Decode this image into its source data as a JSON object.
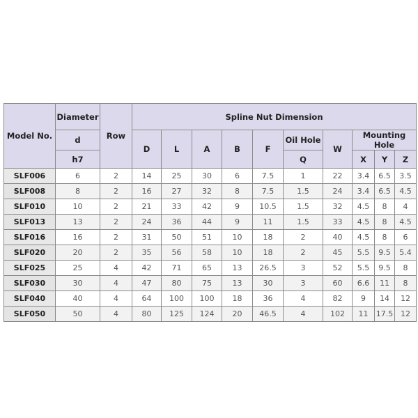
{
  "header": {
    "model": "Model No.",
    "diameter": "Diameter",
    "d": "d",
    "h7": "h7",
    "row": "Row",
    "spline": "Spline Nut Dimension",
    "D": "D",
    "L": "L",
    "A": "A",
    "B": "B",
    "F": "F",
    "oil_hole": "Oil Hole",
    "Q": "Q",
    "W": "W",
    "mounting_hole": "Mounting Hole",
    "X": "X",
    "Y": "Y",
    "Z": "Z"
  },
  "rows": [
    [
      "SLF006",
      "6",
      "2",
      "14",
      "25",
      "30",
      "6",
      "7.5",
      "1",
      "22",
      "3.4",
      "6.5",
      "3.5"
    ],
    [
      "SLF008",
      "8",
      "2",
      "16",
      "27",
      "32",
      "8",
      "7.5",
      "1.5",
      "24",
      "3.4",
      "6.5",
      "4.5"
    ],
    [
      "SLF010",
      "10",
      "2",
      "21",
      "33",
      "42",
      "9",
      "10.5",
      "1.5",
      "32",
      "4.5",
      "8",
      "4"
    ],
    [
      "SLF013",
      "13",
      "2",
      "24",
      "36",
      "44",
      "9",
      "11",
      "1.5",
      "33",
      "4.5",
      "8",
      "4.5"
    ],
    [
      "SLF016",
      "16",
      "2",
      "31",
      "50",
      "51",
      "10",
      "18",
      "2",
      "40",
      "4.5",
      "8",
      "6"
    ],
    [
      "SLF020",
      "20",
      "2",
      "35",
      "56",
      "58",
      "10",
      "18",
      "2",
      "45",
      "5.5",
      "9.5",
      "5.4"
    ],
    [
      "SLF025",
      "25",
      "4",
      "42",
      "71",
      "65",
      "13",
      "26.5",
      "3",
      "52",
      "5.5",
      "9.5",
      "8"
    ],
    [
      "SLF030",
      "30",
      "4",
      "47",
      "80",
      "75",
      "13",
      "30",
      "3",
      "60",
      "6.6",
      "11",
      "8"
    ],
    [
      "SLF040",
      "40",
      "4",
      "64",
      "100",
      "100",
      "18",
      "36",
      "4",
      "82",
      "9",
      "14",
      "12"
    ],
    [
      "SLF050",
      "50",
      "4",
      "80",
      "125",
      "124",
      "20",
      "46.5",
      "4",
      "102",
      "11",
      "17.5",
      "12"
    ]
  ]
}
